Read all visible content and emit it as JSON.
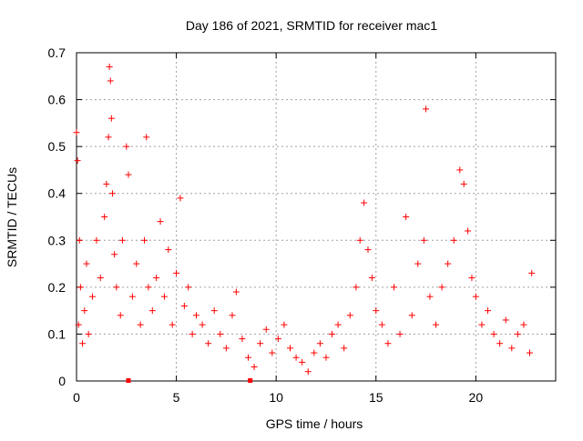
{
  "chart_data": {
    "type": "scatter",
    "title": "Day 186 of 2021, SRMTID for receiver mac1",
    "xlabel": "GPS time / hours",
    "ylabel": "SRMTID / TECUs",
    "xlim": [
      0,
      24
    ],
    "ylim": [
      0,
      0.7
    ],
    "xticks": [
      0,
      5,
      10,
      15,
      20
    ],
    "xtick_labels": [
      "0",
      "5",
      "10",
      "15",
      "20"
    ],
    "yticks": [
      0,
      0.1,
      0.2,
      0.3,
      0.4,
      0.5,
      0.6,
      0.7
    ],
    "ytick_labels": [
      "0",
      "0.1",
      "0.2",
      "0.3",
      "0.4",
      "0.5",
      "0.6",
      "0.7"
    ],
    "grid": true,
    "marker": "+",
    "series": [
      {
        "name": "SRMTID",
        "color": "#ff0000",
        "x": [
          0.0,
          0.05,
          0.1,
          0.15,
          0.2,
          0.3,
          0.4,
          0.5,
          0.6,
          0.8,
          1.0,
          1.2,
          1.4,
          1.5,
          1.6,
          1.65,
          1.7,
          1.75,
          1.8,
          1.9,
          2.0,
          2.2,
          2.3,
          2.5,
          2.6,
          2.8,
          3.0,
          3.2,
          3.4,
          3.5,
          3.6,
          3.8,
          4.0,
          4.2,
          4.4,
          4.6,
          4.8,
          5.0,
          5.2,
          5.4,
          5.6,
          5.8,
          6.0,
          6.3,
          6.6,
          6.9,
          7.2,
          7.5,
          7.8,
          8.0,
          8.3,
          8.6,
          8.9,
          9.2,
          9.5,
          9.8,
          10.1,
          10.4,
          10.7,
          11.0,
          11.3,
          11.6,
          11.9,
          12.2,
          12.5,
          12.8,
          13.1,
          13.4,
          13.7,
          14.0,
          14.2,
          14.4,
          14.6,
          14.8,
          15.0,
          15.3,
          15.6,
          15.9,
          16.2,
          16.5,
          16.8,
          17.1,
          17.4,
          17.5,
          17.7,
          18.0,
          18.3,
          18.6,
          18.9,
          19.2,
          19.4,
          19.6,
          19.8,
          20.0,
          20.3,
          20.6,
          20.9,
          21.2,
          21.5,
          21.8,
          22.1,
          22.4,
          22.7,
          22.8
        ],
        "y": [
          0.53,
          0.47,
          0.12,
          0.3,
          0.2,
          0.08,
          0.15,
          0.25,
          0.1,
          0.18,
          0.3,
          0.22,
          0.35,
          0.42,
          0.52,
          0.67,
          0.64,
          0.56,
          0.4,
          0.27,
          0.2,
          0.14,
          0.3,
          0.5,
          0.44,
          0.18,
          0.25,
          0.12,
          0.3,
          0.52,
          0.2,
          0.15,
          0.22,
          0.34,
          0.18,
          0.28,
          0.12,
          0.23,
          0.39,
          0.16,
          0.2,
          0.1,
          0.14,
          0.12,
          0.08,
          0.15,
          0.1,
          0.07,
          0.14,
          0.19,
          0.09,
          0.05,
          0.03,
          0.08,
          0.11,
          0.06,
          0.09,
          0.12,
          0.07,
          0.05,
          0.04,
          0.02,
          0.06,
          0.08,
          0.05,
          0.1,
          0.12,
          0.07,
          0.14,
          0.2,
          0.3,
          0.38,
          0.28,
          0.22,
          0.15,
          0.12,
          0.08,
          0.2,
          0.1,
          0.35,
          0.14,
          0.25,
          0.3,
          0.58,
          0.18,
          0.12,
          0.2,
          0.25,
          0.3,
          0.45,
          0.42,
          0.32,
          0.22,
          0.18,
          0.12,
          0.15,
          0.1,
          0.08,
          0.13,
          0.07,
          0.1,
          0.12,
          0.06,
          0.23
        ]
      }
    ],
    "gap_markers_x": [
      2.6,
      8.7
    ]
  }
}
